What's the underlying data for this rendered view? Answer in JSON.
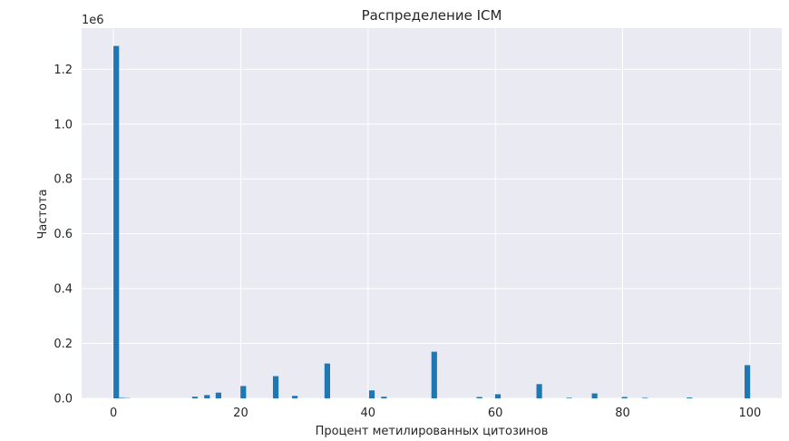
{
  "chart_data": {
    "type": "bar",
    "title": "Распределение ICM",
    "xlabel": "Процент метилированных цитозинов",
    "ylabel": "Частота",
    "y_offset_label": "1e6",
    "x_axis": {
      "range": [
        -5,
        105
      ],
      "ticks": [
        0,
        20,
        40,
        60,
        80,
        100
      ]
    },
    "y_axis": {
      "range": [
        0,
        1.35
      ],
      "ticks": [
        0.0,
        0.2,
        0.4,
        0.6,
        0.8,
        1.0,
        1.2
      ],
      "tick_labels": [
        "0.0",
        "0.2",
        "0.4",
        "0.6",
        "0.8",
        "1.0",
        "1.2"
      ]
    },
    "grid": true,
    "legend": "none",
    "bar_color": "#1f77b4",
    "background_color": "#eaeaf2",
    "bar_width": 0.88,
    "bins": [
      {
        "x": 0.44,
        "value": 1.285
      },
      {
        "x": 1.3,
        "value": 0.002
      },
      {
        "x": 2.2,
        "value": 0.001
      },
      {
        "x": 12.8,
        "value": 0.006
      },
      {
        "x": 14.7,
        "value": 0.012
      },
      {
        "x": 16.5,
        "value": 0.021
      },
      {
        "x": 20.4,
        "value": 0.045
      },
      {
        "x": 25.5,
        "value": 0.081
      },
      {
        "x": 28.5,
        "value": 0.009
      },
      {
        "x": 33.6,
        "value": 0.127
      },
      {
        "x": 40.6,
        "value": 0.029
      },
      {
        "x": 42.5,
        "value": 0.006
      },
      {
        "x": 50.4,
        "value": 0.17
      },
      {
        "x": 57.5,
        "value": 0.005
      },
      {
        "x": 60.4,
        "value": 0.015
      },
      {
        "x": 66.9,
        "value": 0.052
      },
      {
        "x": 71.6,
        "value": 0.002
      },
      {
        "x": 75.6,
        "value": 0.018
      },
      {
        "x": 80.3,
        "value": 0.005
      },
      {
        "x": 83.5,
        "value": 0.002
      },
      {
        "x": 90.5,
        "value": 0.003
      },
      {
        "x": 99.6,
        "value": 0.121
      }
    ]
  }
}
